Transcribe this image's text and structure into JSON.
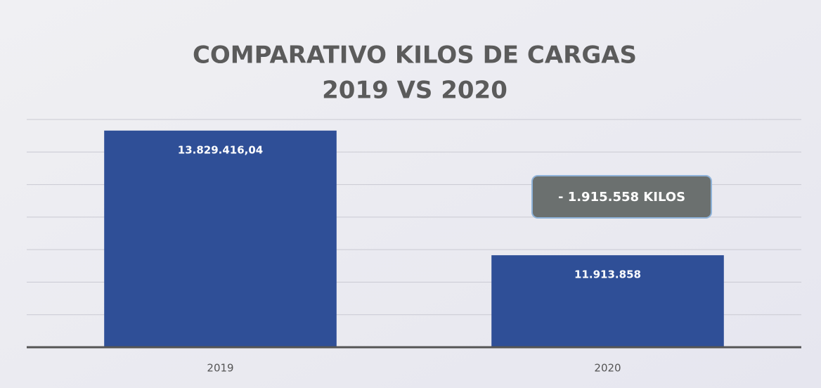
{
  "chart_data": {
    "type": "bar",
    "title": "COMPARATIVO KILOS DE CARGAS",
    "subtitle": "2019 VS 2020",
    "categories": [
      "2019",
      "2020"
    ],
    "values": [
      13829416.04,
      11913858
    ],
    "value_labels": [
      "13.829.416,04",
      "11.913.858"
    ],
    "color": "#2f4f97",
    "ylim": [
      10500000,
      14000000
    ],
    "yticks": [
      10500000,
      11000000,
      11500000,
      12000000,
      12500000,
      13000000,
      13500000,
      14000000
    ],
    "grid": true,
    "annotation": "- 1.915.558 KILOS"
  }
}
